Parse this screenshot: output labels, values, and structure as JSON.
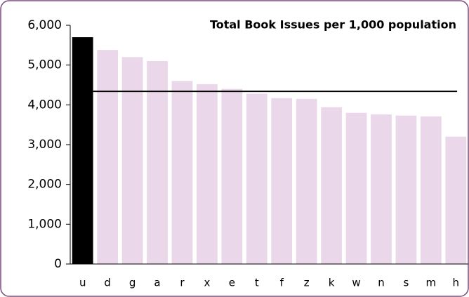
{
  "chart_data": {
    "type": "bar",
    "title": "Total Book Issues per 1,000 population",
    "categories": [
      "u",
      "d",
      "g",
      "a",
      "r",
      "x",
      "e",
      "t",
      "f",
      "z",
      "k",
      "w",
      "n",
      "s",
      "m",
      "h"
    ],
    "values": [
      5700,
      5380,
      5200,
      5100,
      4600,
      4520,
      4400,
      4280,
      4170,
      4150,
      3940,
      3800,
      3760,
      3730,
      3710,
      3200
    ],
    "colors": [
      "#000000",
      "#ead7ea",
      "#ead7ea",
      "#ead7ea",
      "#ead7ea",
      "#ead7ea",
      "#ead7ea",
      "#ead7ea",
      "#ead7ea",
      "#ead7ea",
      "#ead7ea",
      "#ead7ea",
      "#ead7ea",
      "#ead7ea",
      "#ead7ea",
      "#ead7ea"
    ],
    "reference_value": 4340,
    "ylim": [
      0,
      6000
    ],
    "yticks": [
      0,
      {
        "value": 1000,
        "label": "1,000"
      },
      {
        "value": 2000,
        "label": "2,000"
      },
      {
        "value": 3000,
        "label": "3,000"
      },
      {
        "value": 4000,
        "label": "4,000"
      },
      {
        "value": 5000,
        "label": "5,000"
      },
      {
        "value": 6000,
        "label": "6,000"
      }
    ],
    "grid": false
  }
}
